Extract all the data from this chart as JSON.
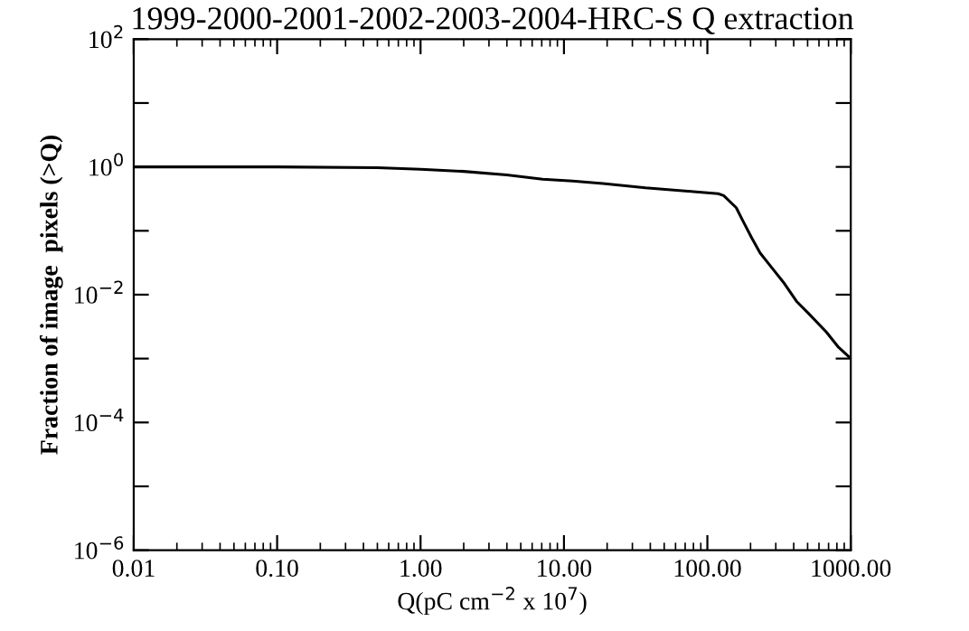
{
  "chart_data": {
    "type": "line",
    "title": "1999-2000-2001-2002-2003-2004-HRC-S Q extraction",
    "xlabel": "Q(pC cm$^{−2}$ x 10$^{7}$)",
    "ylabel": "Fraction of image  pixels (>Q)",
    "log": "xy",
    "grid": false,
    "marker": "none",
    "line_style": "solid",
    "x": [
      0.01,
      0.1,
      0.5,
      1,
      2,
      4,
      7.1,
      11.5,
      18.7,
      37,
      80,
      119,
      130,
      159,
      175,
      204,
      233,
      283,
      344,
      418,
      507,
      675,
      822,
      1000
    ],
    "series": [
      {
        "color": "#000000",
        "values": [
          1.0,
          1.0,
          0.97,
          0.92,
          0.85,
          0.75,
          0.64,
          0.6,
          0.55,
          0.47,
          0.41,
          0.38,
          0.355,
          0.23,
          0.15,
          0.077,
          0.045,
          0.026,
          0.015,
          0.0079,
          0.0051,
          0.0026,
          0.0015,
          0.001
        ]
      }
    ],
    "xlim": [
      0.01,
      1000
    ],
    "xticks": [
      {
        "value": 0.01,
        "label": "0.01"
      },
      {
        "value": 0.1,
        "label": "0.10"
      },
      {
        "value": 1,
        "label": "1.00"
      },
      {
        "value": 10,
        "label": "10.00"
      },
      {
        "value": 100,
        "label": "100.00"
      },
      {
        "value": 1000,
        "label": "1000.00"
      }
    ],
    "ylim": [
      1e-06,
      100
    ],
    "yticks": [
      {
        "value": 1e-06,
        "label": "10$^{−6}$"
      },
      {
        "value": 1e-05,
        "label": null
      },
      {
        "value": 0.0001,
        "label": "10$^{−4}$"
      },
      {
        "value": 0.001,
        "label": null
      },
      {
        "value": 0.01,
        "label": "10$^{−2}$"
      },
      {
        "value": 0.1,
        "label": null
      },
      {
        "value": 1,
        "label": "10$^{0}$"
      },
      {
        "value": 10,
        "label": null
      },
      {
        "value": 100,
        "label": "10$^{2}$"
      }
    ]
  }
}
